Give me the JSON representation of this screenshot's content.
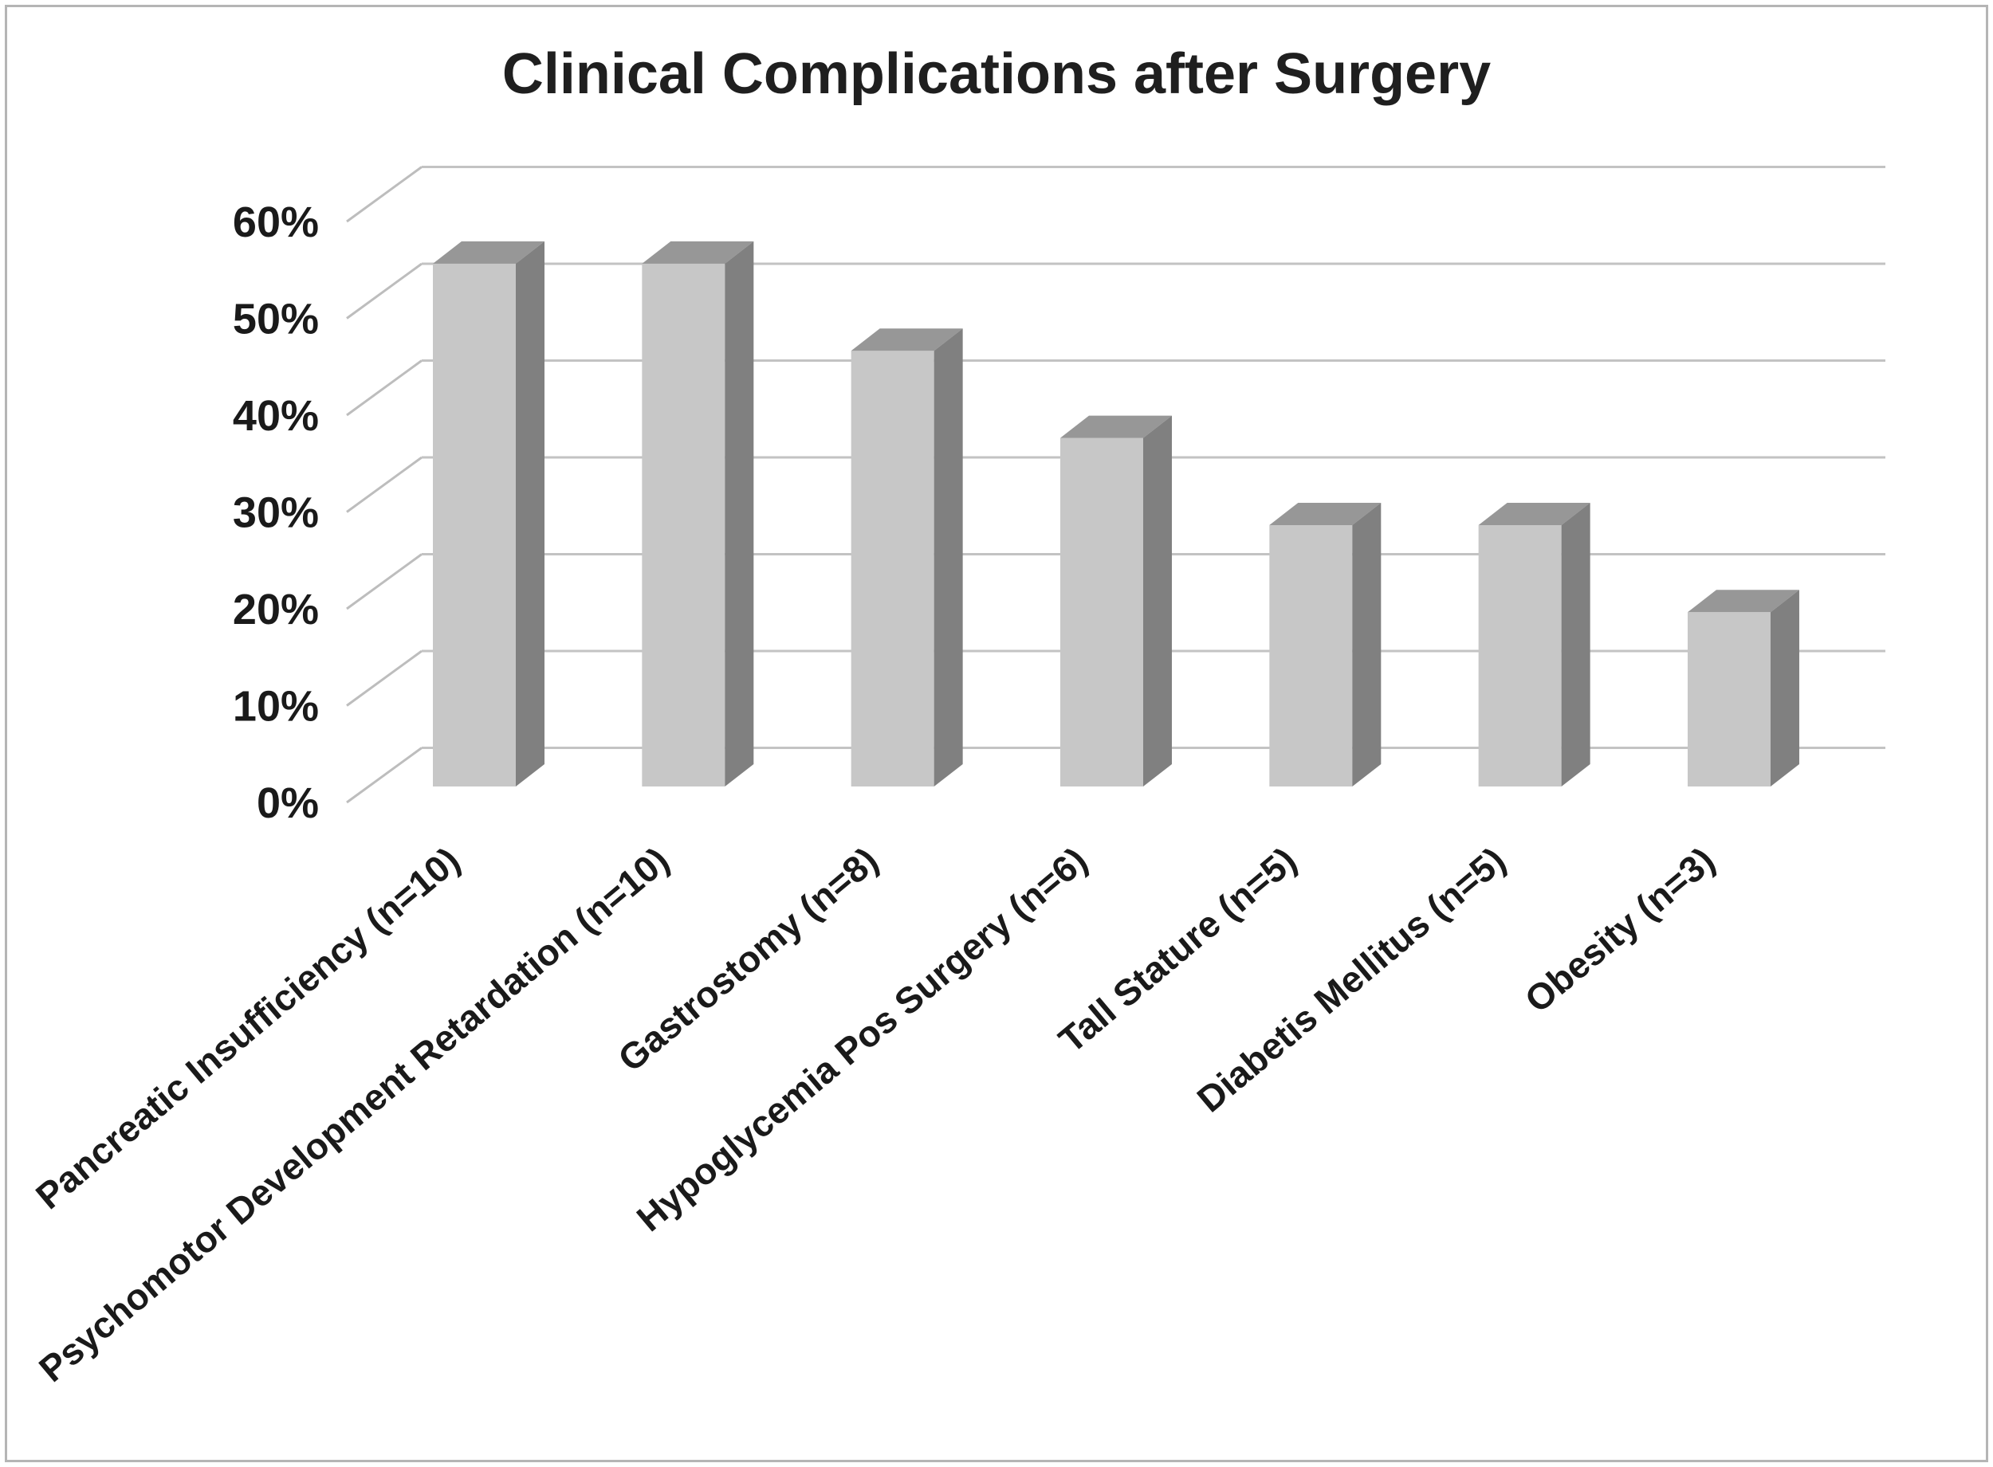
{
  "title": "Clinical Complications after Surgery",
  "chart_data": {
    "type": "bar",
    "style": "3d-column",
    "title": "Clinical Complications after Surgery",
    "categories": [
      "Pancreatic Insufficiency (n=10)",
      "Psychomotor Development Retardation (n=10)",
      "Gastrostomy (n=8)",
      "Hypoglycemia Pos Surgery (n=6)",
      "Tall Stature (n=5)",
      "Diabetis Mellitus (n=5)",
      "Obesity (n=3)"
    ],
    "values": [
      54,
      54,
      45,
      36,
      27,
      27,
      18
    ],
    "unit": "%",
    "xlabel": "",
    "ylabel": "",
    "yticks": [
      "0%",
      "10%",
      "20%",
      "30%",
      "40%",
      "50%",
      "60%"
    ],
    "ylim": [
      0,
      60
    ],
    "ytick_step": 10,
    "grid": true,
    "legend": false,
    "colors": {
      "bar_front": "#c7c7c7",
      "bar_top": "#979797",
      "bar_side": "#808080",
      "gridline": "#c3c3c3",
      "tick_diagonal": "#bdbdbd",
      "label_text": "#1a1a1a",
      "title_text": "#1f1f1f",
      "frame_border": "#b5b5b5"
    }
  }
}
